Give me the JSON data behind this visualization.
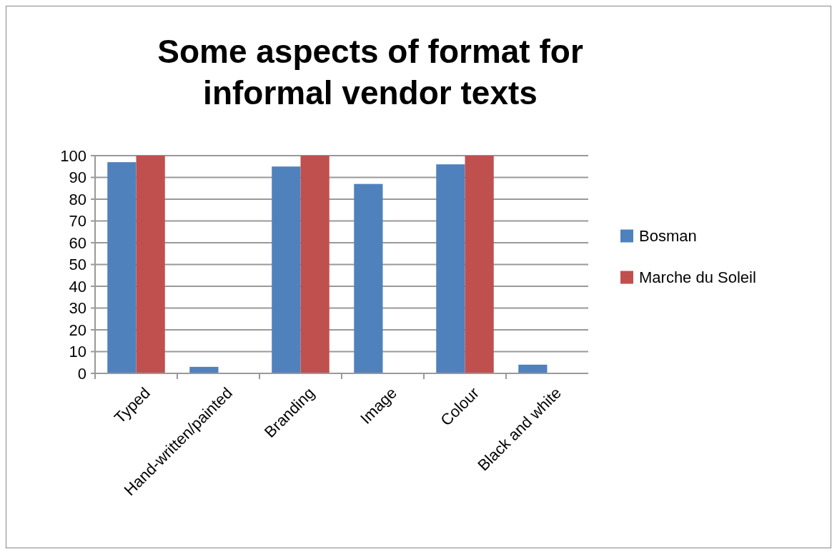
{
  "chart_data": {
    "type": "bar",
    "title": "Some aspects of format for informal vendor texts",
    "categories": [
      "Typed",
      "Hand-written/painted",
      "Branding",
      "Image",
      "Colour",
      "Black and white"
    ],
    "series": [
      {
        "name": "Bosman",
        "color": "#4f81bd",
        "values": [
          97,
          3,
          95,
          87,
          96,
          4
        ]
      },
      {
        "name": "Marche du Soleil",
        "color": "#c0504d",
        "values": [
          100,
          0,
          100,
          0,
          100,
          0
        ]
      }
    ],
    "ylim": [
      0,
      100
    ],
    "yticks": [
      0,
      10,
      20,
      30,
      40,
      50,
      60,
      70,
      80,
      90,
      100
    ],
    "grid": "y",
    "legend": "right"
  }
}
